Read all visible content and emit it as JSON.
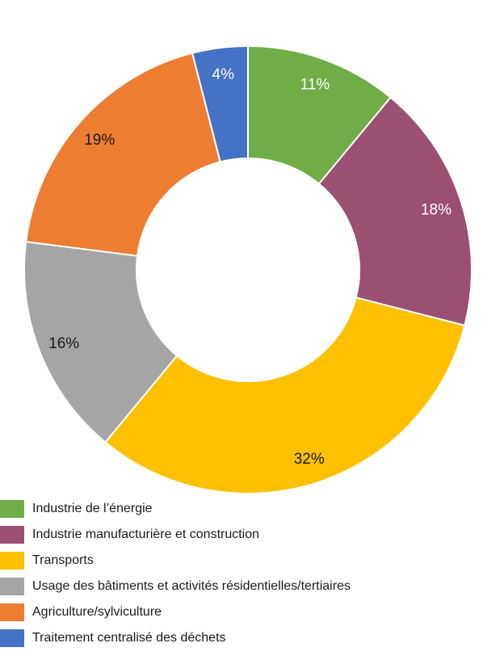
{
  "chart_data": {
    "type": "pie",
    "donut": true,
    "title": "",
    "legend_position": "bottom-left",
    "slices": [
      {
        "name": "Industrie de l’énergie",
        "value": 11,
        "label": "11%",
        "color": "#70AD47",
        "label_color": "#ffffff"
      },
      {
        "name": "Industrie manufacturière et construction",
        "value": 18,
        "label": "18%",
        "color": "#9B4F72",
        "label_color": "#ffffff"
      },
      {
        "name": "Transports",
        "value": 32,
        "label": "32%",
        "color": "#FFC000",
        "label_color": "#1a1a1a"
      },
      {
        "name": "Usage des bâtiments et activités résidentielles/tertiaires",
        "value": 16,
        "label": "16%",
        "color": "#A5A5A5",
        "label_color": "#1a1a1a"
      },
      {
        "name": "Agriculture/sylviculture",
        "value": 19,
        "label": "19%",
        "color": "#ED7D31",
        "label_color": "#1a1a1a"
      },
      {
        "name": "Traitement centralisé des déchets",
        "value": 4,
        "label": "4%",
        "color": "#4472C4",
        "label_color": "#ffffff"
      }
    ]
  }
}
